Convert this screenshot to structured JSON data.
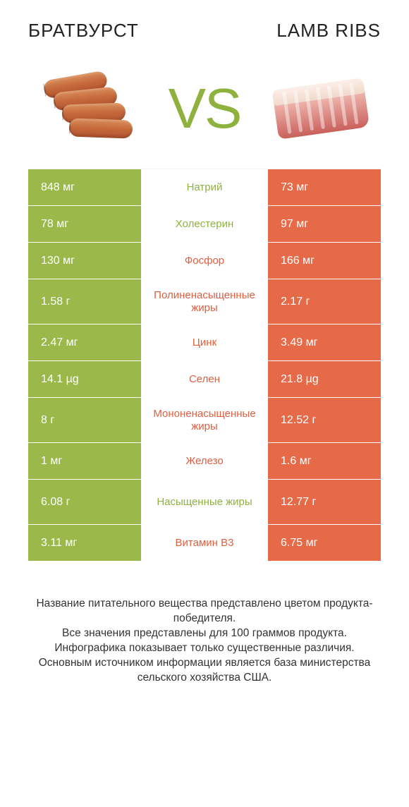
{
  "colors": {
    "green": "#9ab94a",
    "orange": "#e66a48",
    "green_text": "#8fb23f",
    "orange_text": "#df5f3f",
    "body_text": "#333333",
    "background": "#ffffff"
  },
  "header": {
    "left": "БРАТВУРСТ",
    "right": "LAMB RIBS",
    "vs": "VS"
  },
  "rows": [
    {
      "left": "848 мг",
      "label": "Натрий",
      "right": "73 мг",
      "winner": "left",
      "tall": false
    },
    {
      "left": "78 мг",
      "label": "Холестерин",
      "right": "97 мг",
      "winner": "left",
      "tall": false
    },
    {
      "left": "130 мг",
      "label": "Фосфор",
      "right": "166 мг",
      "winner": "right",
      "tall": false
    },
    {
      "left": "1.58 г",
      "label": "Полиненасыщенные жиры",
      "right": "2.17 г",
      "winner": "right",
      "tall": true
    },
    {
      "left": "2.47 мг",
      "label": "Цинк",
      "right": "3.49 мг",
      "winner": "right",
      "tall": false
    },
    {
      "left": "14.1 µg",
      "label": "Селен",
      "right": "21.8 µg",
      "winner": "right",
      "tall": false
    },
    {
      "left": "8 г",
      "label": "Мононенасыщенные жиры",
      "right": "12.52 г",
      "winner": "right",
      "tall": true
    },
    {
      "left": "1 мг",
      "label": "Железо",
      "right": "1.6 мг",
      "winner": "right",
      "tall": false
    },
    {
      "left": "6.08 г",
      "label": "Насыщенные жиры",
      "right": "12.77 г",
      "winner": "left",
      "tall": true
    },
    {
      "left": "3.11 мг",
      "label": "Витамин B3",
      "right": "6.75 мг",
      "winner": "right",
      "tall": false
    }
  ],
  "footer": {
    "line1": "Название питательного вещества представлено цветом продукта-победителя.",
    "line2": "Все значения представлены для 100 граммов продукта.",
    "line3": "Инфографика показывает только существенные различия.",
    "line4": "Основным источником информации является база министерства сельского хозяйства США."
  }
}
